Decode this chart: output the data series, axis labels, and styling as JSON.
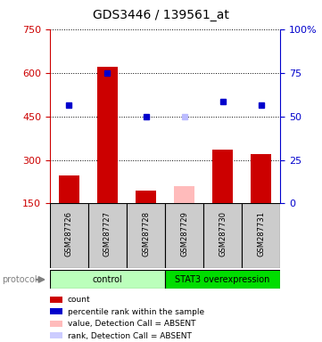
{
  "title": "GDS3446 / 139561_at",
  "samples": [
    "GSM287726",
    "GSM287727",
    "GSM287728",
    "GSM287729",
    "GSM287730",
    "GSM287731"
  ],
  "bar_values": [
    245,
    620,
    195,
    null,
    335,
    320
  ],
  "absent_bar_values": [
    null,
    null,
    null,
    210,
    null,
    null
  ],
  "blue_dot_values": [
    490,
    600,
    450,
    null,
    500,
    490
  ],
  "absent_dot_values": [
    null,
    null,
    null,
    450,
    null,
    null
  ],
  "ylim_left": [
    150,
    750
  ],
  "ylim_right": [
    0,
    100
  ],
  "yticks_left": [
    150,
    300,
    450,
    600,
    750
  ],
  "yticks_right": [
    0,
    25,
    50,
    75,
    100
  ],
  "protocol_groups": [
    {
      "label": "control",
      "start": 0,
      "end": 3,
      "color": "#bbffbb"
    },
    {
      "label": "STAT3 overexpression",
      "start": 3,
      "end": 6,
      "color": "#00dd00"
    }
  ],
  "legend_items": [
    {
      "color": "#cc0000",
      "label": "count",
      "shape": "square"
    },
    {
      "color": "#0000cc",
      "label": "percentile rank within the sample",
      "shape": "square"
    },
    {
      "color": "#ffbbbb",
      "label": "value, Detection Call = ABSENT",
      "shape": "square"
    },
    {
      "color": "#ccccff",
      "label": "rank, Detection Call = ABSENT",
      "shape": "square"
    }
  ],
  "bar_width": 0.55,
  "left_axis_color": "#cc0000",
  "right_axis_color": "#0000cc",
  "bar_color": "#cc0000",
  "absent_bar_color": "#ffbbbb",
  "dot_color": "#0000cc",
  "absent_dot_color": "#bbbbff"
}
